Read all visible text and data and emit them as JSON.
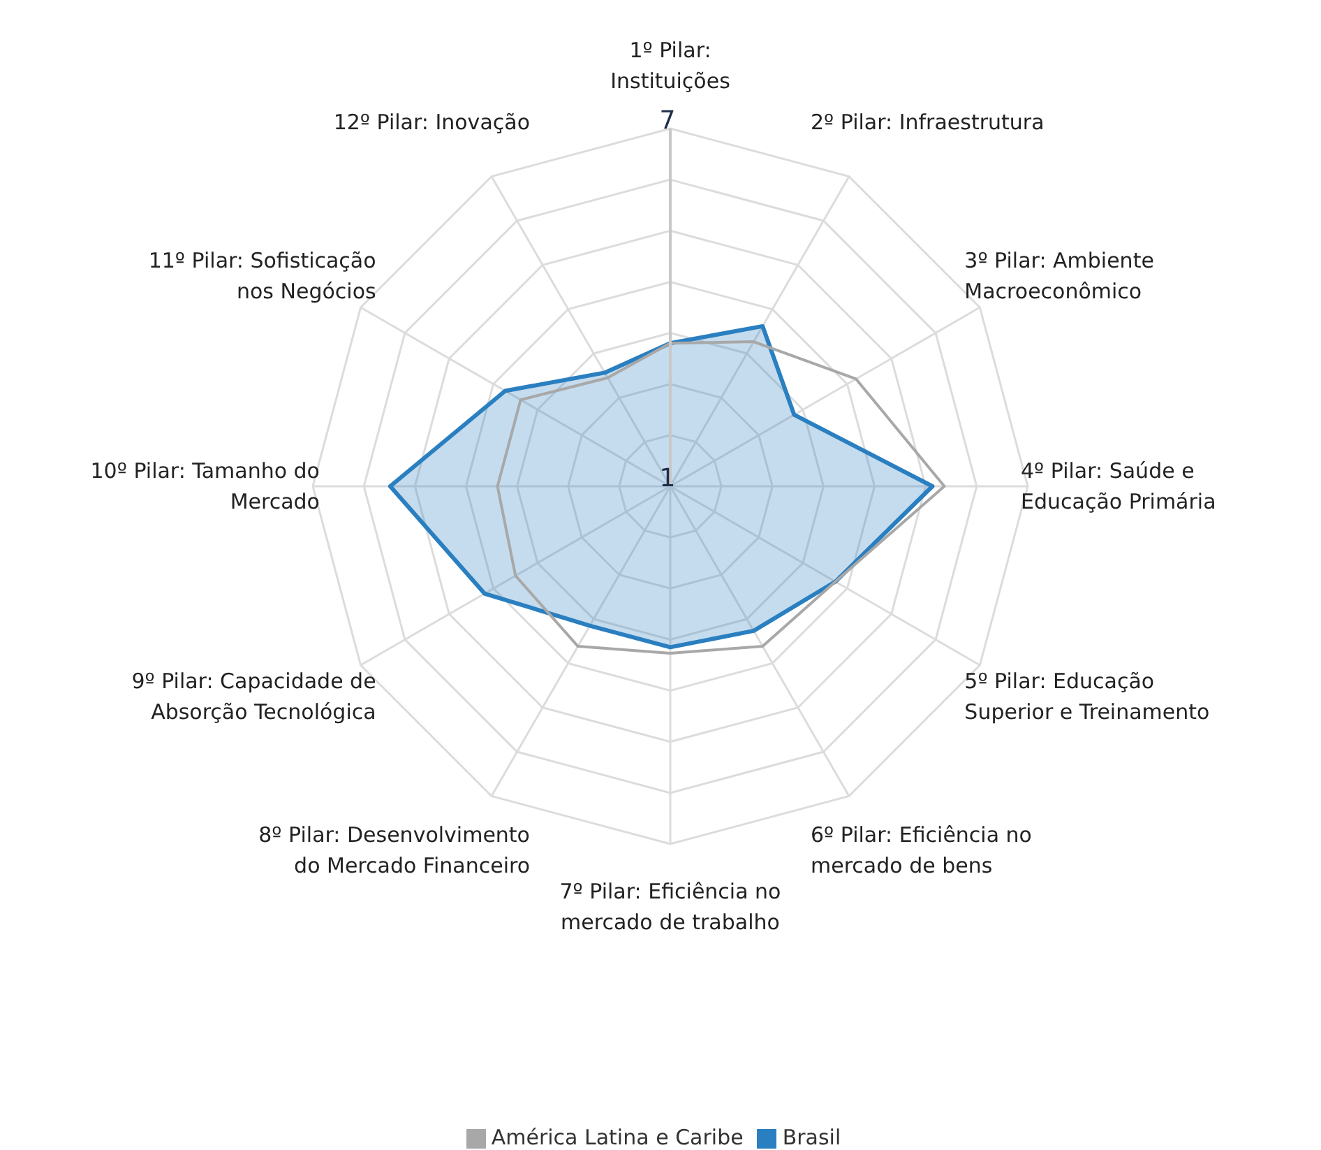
{
  "chart_data": {
    "type": "radar",
    "categories": [
      "1º Pilar: Instituições",
      "2º Pilar: Infraestrutura",
      "3º Pilar: Ambiente Macroeconômico",
      "4º Pilar: Saúde e Educação Primária",
      "5º Pilar: Educação Superior e Treinamento",
      "6º Pilar: Eficiência no mercado de bens",
      "7º Pilar: Eficiência no mercado de trabalho",
      "8º Pilar: Desenvolvimento do Mercado Financeiro",
      "9º Pilar: Capacidade de Absorção Tecnológica",
      "10º Pilar: Tamanho do Mercado",
      "11º Pilar: Sofisticação nos Negócios",
      "12º Pilar: Inovação"
    ],
    "series": [
      {
        "name": "Brasil",
        "color": "#2a7fc0",
        "values": [
          3.4,
          4.1,
          3.4,
          5.4,
          4.2,
          3.8,
          3.7,
          3.7,
          4.6,
          5.7,
          4.2,
          3.2
        ]
      },
      {
        "name": "América Latina e Caribe",
        "color": "#a8a8a8",
        "values": [
          3.4,
          3.8,
          4.6,
          5.6,
          4.2,
          4.1,
          3.8,
          4.1,
          4.0,
          3.9,
          3.9,
          3.1
        ]
      }
    ],
    "ylim": [
      1,
      7
    ],
    "yticks": [
      1,
      7
    ],
    "grid": true,
    "legend": "bottom"
  }
}
